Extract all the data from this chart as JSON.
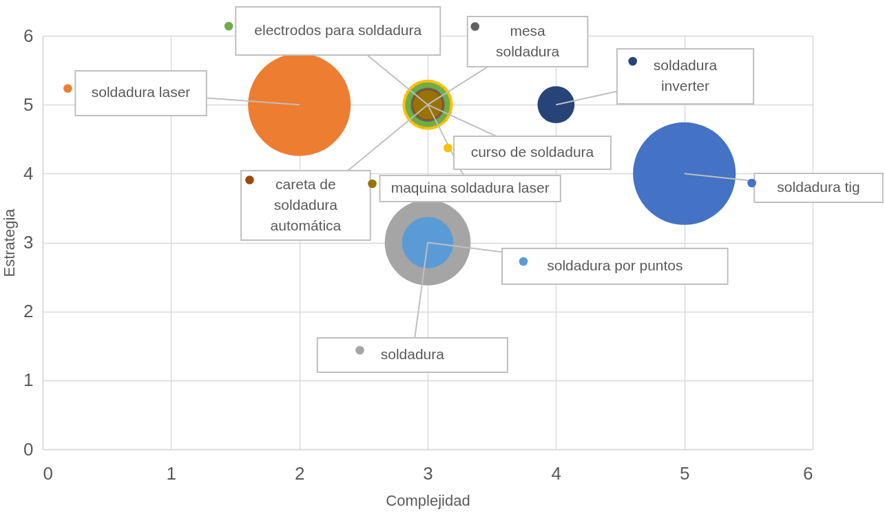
{
  "chart_data": {
    "type": "bubble",
    "xlabel": "Complejidad",
    "ylabel": "Estrategia",
    "xlim": [
      0,
      6
    ],
    "ylim": [
      0,
      6
    ],
    "xticks": [
      0,
      1,
      2,
      3,
      4,
      5,
      6
    ],
    "yticks": [
      0,
      1,
      2,
      3,
      4,
      5,
      6
    ],
    "grid": true,
    "legend": "top",
    "series": [
      {
        "name": "soldadura tig",
        "color": "#4472c4",
        "x": [
          5
        ],
        "values": [
          4
        ],
        "sizes": [
          1
        ]
      },
      {
        "name": "soldadura laser",
        "color": "#ed7d31",
        "x": [
          2
        ],
        "values": [
          5
        ],
        "sizes": [
          1
        ]
      },
      {
        "name": "soldadura",
        "color": "#a5a5a5",
        "x": [
          3
        ],
        "values": [
          3
        ],
        "sizes": [
          0.7
        ]
      },
      {
        "name": "curso de soldadura",
        "color": "#ffc000",
        "x": [
          3
        ],
        "values": [
          5
        ],
        "sizes": [
          0.24
        ]
      },
      {
        "name": "soldadura por puntos",
        "color": "#5b9bd5",
        "x": [
          3
        ],
        "values": [
          3
        ],
        "sizes": [
          0.25
        ]
      },
      {
        "name": "electrodos para soldadura",
        "color": "#70ad47",
        "x": [
          3
        ],
        "values": [
          5
        ],
        "sizes": [
          0.19
        ]
      },
      {
        "name": "soldadura inverter",
        "color": "#264478",
        "x": [
          4
        ],
        "values": [
          5
        ],
        "sizes": [
          0.13
        ]
      },
      {
        "name": "careta de soldadura automática",
        "color": "#9e480e",
        "x": [
          3
        ],
        "values": [
          5
        ],
        "sizes": [
          0.09
        ]
      },
      {
        "name": "mesa soldadura",
        "color": "#636363",
        "x": [
          3
        ],
        "values": [
          5
        ],
        "sizes": [
          0.11
        ]
      },
      {
        "name": "maquina soldadura laser",
        "color": "#997300",
        "x": [
          3
        ],
        "values": [
          5
        ],
        "sizes": [
          0.08
        ]
      }
    ]
  }
}
